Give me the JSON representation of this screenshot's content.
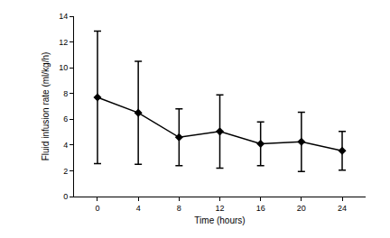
{
  "chart_data": {
    "type": "line",
    "x_label": "Time (hours)",
    "y_label": "Fluid infusion rate (ml/kg/h)",
    "x": [
      0,
      4,
      8,
      12,
      16,
      20,
      24
    ],
    "values": [
      7.7,
      6.5,
      4.6,
      5.05,
      4.1,
      4.25,
      3.55
    ],
    "errors": [
      5.15,
      4.0,
      2.2,
      2.85,
      1.7,
      2.3,
      1.5
    ],
    "color": "#000000",
    "marker": "diamond",
    "line_style": "solid",
    "xlim": [
      -2.3,
      26.3
    ],
    "xticks": [
      0,
      4,
      8,
      12,
      16,
      20,
      24
    ],
    "ylim": [
      0,
      14
    ],
    "yticks": [
      0,
      2,
      4,
      6,
      8,
      10,
      12,
      14
    ],
    "grid": false
  }
}
